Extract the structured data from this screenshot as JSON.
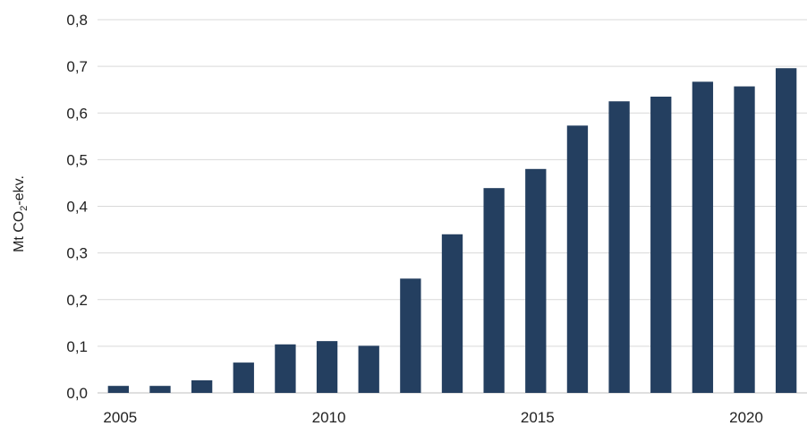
{
  "chart_data": {
    "type": "bar",
    "categories": [
      "2005",
      "2006",
      "2007",
      "2008",
      "2009",
      "2010",
      "2011",
      "2012",
      "2013",
      "2014",
      "2015",
      "2016",
      "2017",
      "2018",
      "2019",
      "2020",
      "2021"
    ],
    "values": [
      0.015,
      0.015,
      0.027,
      0.065,
      0.104,
      0.111,
      0.101,
      0.245,
      0.34,
      0.439,
      0.48,
      0.573,
      0.625,
      0.635,
      0.667,
      0.657,
      0.696
    ],
    "title": "",
    "xlabel": "",
    "ylabel": {
      "prefix": "Mt CO",
      "subscript": "2",
      "suffix": "-ekv."
    },
    "ylim": [
      0,
      0.8
    ],
    "yticks": [
      "0,0",
      "0,1",
      "0,2",
      "0,3",
      "0,4",
      "0,5",
      "0,6",
      "0,7",
      "0,8"
    ],
    "xtick_labels": [
      "2005",
      "2010",
      "2015",
      "2020"
    ],
    "grid": true,
    "legend": "none",
    "bar_color": "#243f60",
    "grid_color": "#d9d9d9"
  }
}
